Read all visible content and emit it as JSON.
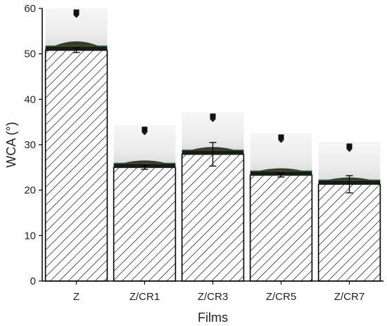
{
  "chart_data": {
    "type": "bar",
    "title": "",
    "xlabel": "Films",
    "ylabel": "WCA (°)",
    "ylim": [
      0,
      60
    ],
    "yticks": [
      0,
      10,
      20,
      30,
      40,
      50,
      60
    ],
    "categories": [
      "Z",
      "Z/CR1",
      "Z/CR3",
      "Z/CR5",
      "Z/CR7"
    ],
    "values": [
      50.8,
      25.0,
      27.9,
      23.3,
      21.3
    ],
    "errors": [
      0.5,
      0.4,
      2.6,
      0.4,
      1.9
    ],
    "bar_fill": "hatched",
    "grid": false,
    "legend": "none",
    "insets": "water droplet contact-angle photo above each bar"
  },
  "colors": {
    "bar_edge": "#000000",
    "hatch": "#000000",
    "axis": "#000000",
    "droplet": "#3a3a2a",
    "needle": "#111111",
    "substrate_line": "#2e7d32"
  }
}
